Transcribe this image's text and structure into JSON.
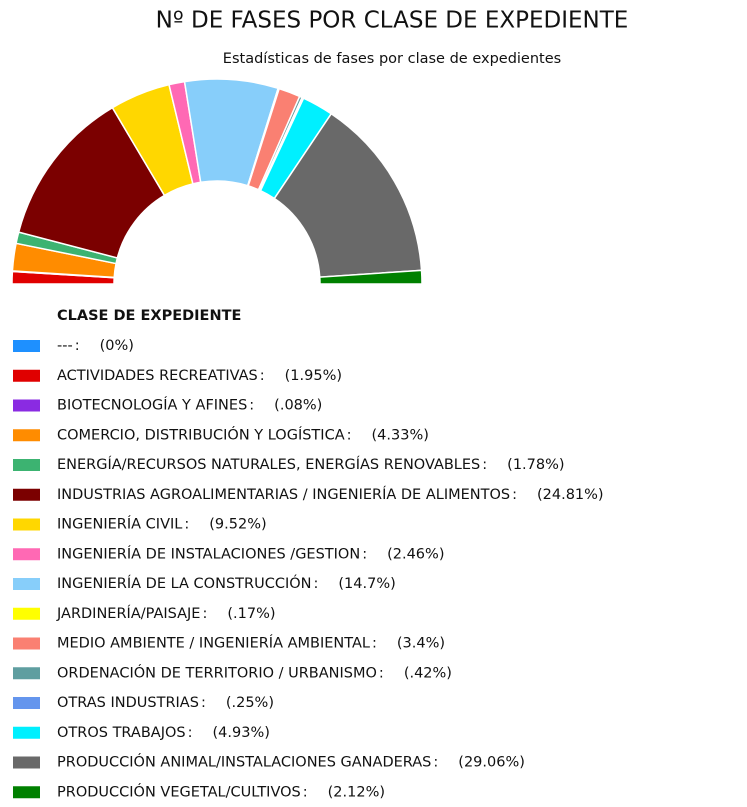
{
  "chart_data": {
    "type": "pie",
    "title": "Nº DE FASES POR CLASE DE EXPEDIENTE",
    "subtitle": "Estadísticas de fases por clase de expedientes",
    "legend_title": "CLASE DE EXPEDIENTE",
    "label_separator": ":",
    "categories": [
      "---",
      "ACTIVIDADES RECREATIVAS",
      "BIOTECNOLOGÍA Y AFINES",
      "COMERCIO, DISTRIBUCIÓN Y LOGÍSTICA",
      "ENERGÍA/RECURSOS NATURALES, ENERGÍAS RENOVABLES",
      "INDUSTRIAS AGROALIMENTARIAS / INGENIERÍA DE ALIMENTOS",
      "INGENIERÍA CIVIL",
      "INGENIERÍA DE INSTALACIONES /GESTION",
      "INGENIERÍA DE LA CONSTRUCCIÓN",
      "JARDINERÍA/PAISAJE",
      "MEDIO AMBIENTE / INGENIERÍA AMBIENTAL",
      "ORDENACIÓN DE TERRITORIO / URBANISMO",
      "OTRAS INDUSTRIAS",
      "OTROS TRABAJOS",
      "PRODUCCIÓN ANIMAL/INSTALACIONES GANADERAS",
      "PRODUCCIÓN VEGETAL/CULTIVOS"
    ],
    "values": [
      0,
      1.95,
      0.08,
      4.33,
      1.78,
      24.81,
      9.52,
      2.46,
      14.7,
      0.17,
      3.4,
      0.42,
      0.25,
      4.93,
      29.06,
      2.12
    ],
    "value_labels": [
      "(0%)",
      "(1.95%)",
      "(.08%)",
      "(4.33%)",
      "(1.78%)",
      "(24.81%)",
      "(9.52%)",
      "(2.46%)",
      "(14.7%)",
      "(.17%)",
      "(3.4%)",
      "(.42%)",
      "(.25%)",
      "(4.93%)",
      "(29.06%)",
      "(2.12%)"
    ],
    "colors": [
      "#1e90ff",
      "#e00000",
      "#8a2be2",
      "#ff8c00",
      "#3cb371",
      "#7b0000",
      "#ffd700",
      "#ff69b4",
      "#87cefa",
      "#ffff00",
      "#fa8072",
      "#5f9ea0",
      "#6495ed",
      "#00f0ff",
      "#696969",
      "#008000"
    ],
    "half_donut": true
  }
}
